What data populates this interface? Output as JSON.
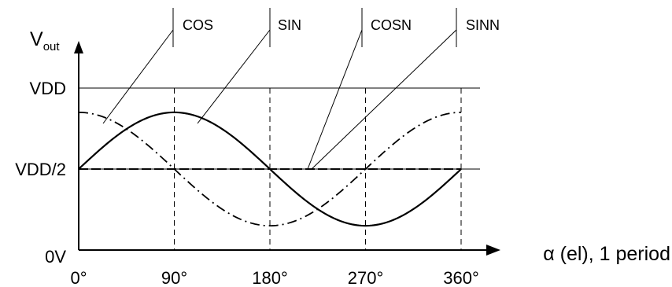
{
  "chart_data": {
    "type": "line",
    "title": "",
    "ylabel_main": "V",
    "ylabel_sub": "out",
    "xlabel": "α (el), 1 period",
    "x_ticks": [
      "0°",
      "90°",
      "180°",
      "270°",
      "360°"
    ],
    "x_tick_values": [
      0,
      90,
      180,
      270,
      360
    ],
    "y_ticks": [
      "0V",
      "VDD/2",
      "VDD"
    ],
    "y_tick_values": [
      0,
      0.5,
      1
    ],
    "xlim": [
      0,
      360
    ],
    "ylim": [
      0,
      1
    ],
    "grid": "dashed vertical at 90° steps, solid horizontal at VDD/2 and VDD",
    "series": [
      {
        "name": "COS",
        "style": "dash-dot",
        "offset": 0.5,
        "amplitude": 0.35,
        "phase": "cos"
      },
      {
        "name": "SIN",
        "style": "solid",
        "offset": 0.5,
        "amplitude": 0.35,
        "phase": "sin"
      },
      {
        "name": "COSN",
        "style": "dashed",
        "offset": 0.5,
        "amplitude": 0,
        "phase": "flat"
      },
      {
        "name": "SINN",
        "style": "dashed",
        "offset": 0.5,
        "amplitude": 0,
        "phase": "flat"
      }
    ],
    "colors": {
      "line": "#000000",
      "background": "#ffffff"
    }
  }
}
